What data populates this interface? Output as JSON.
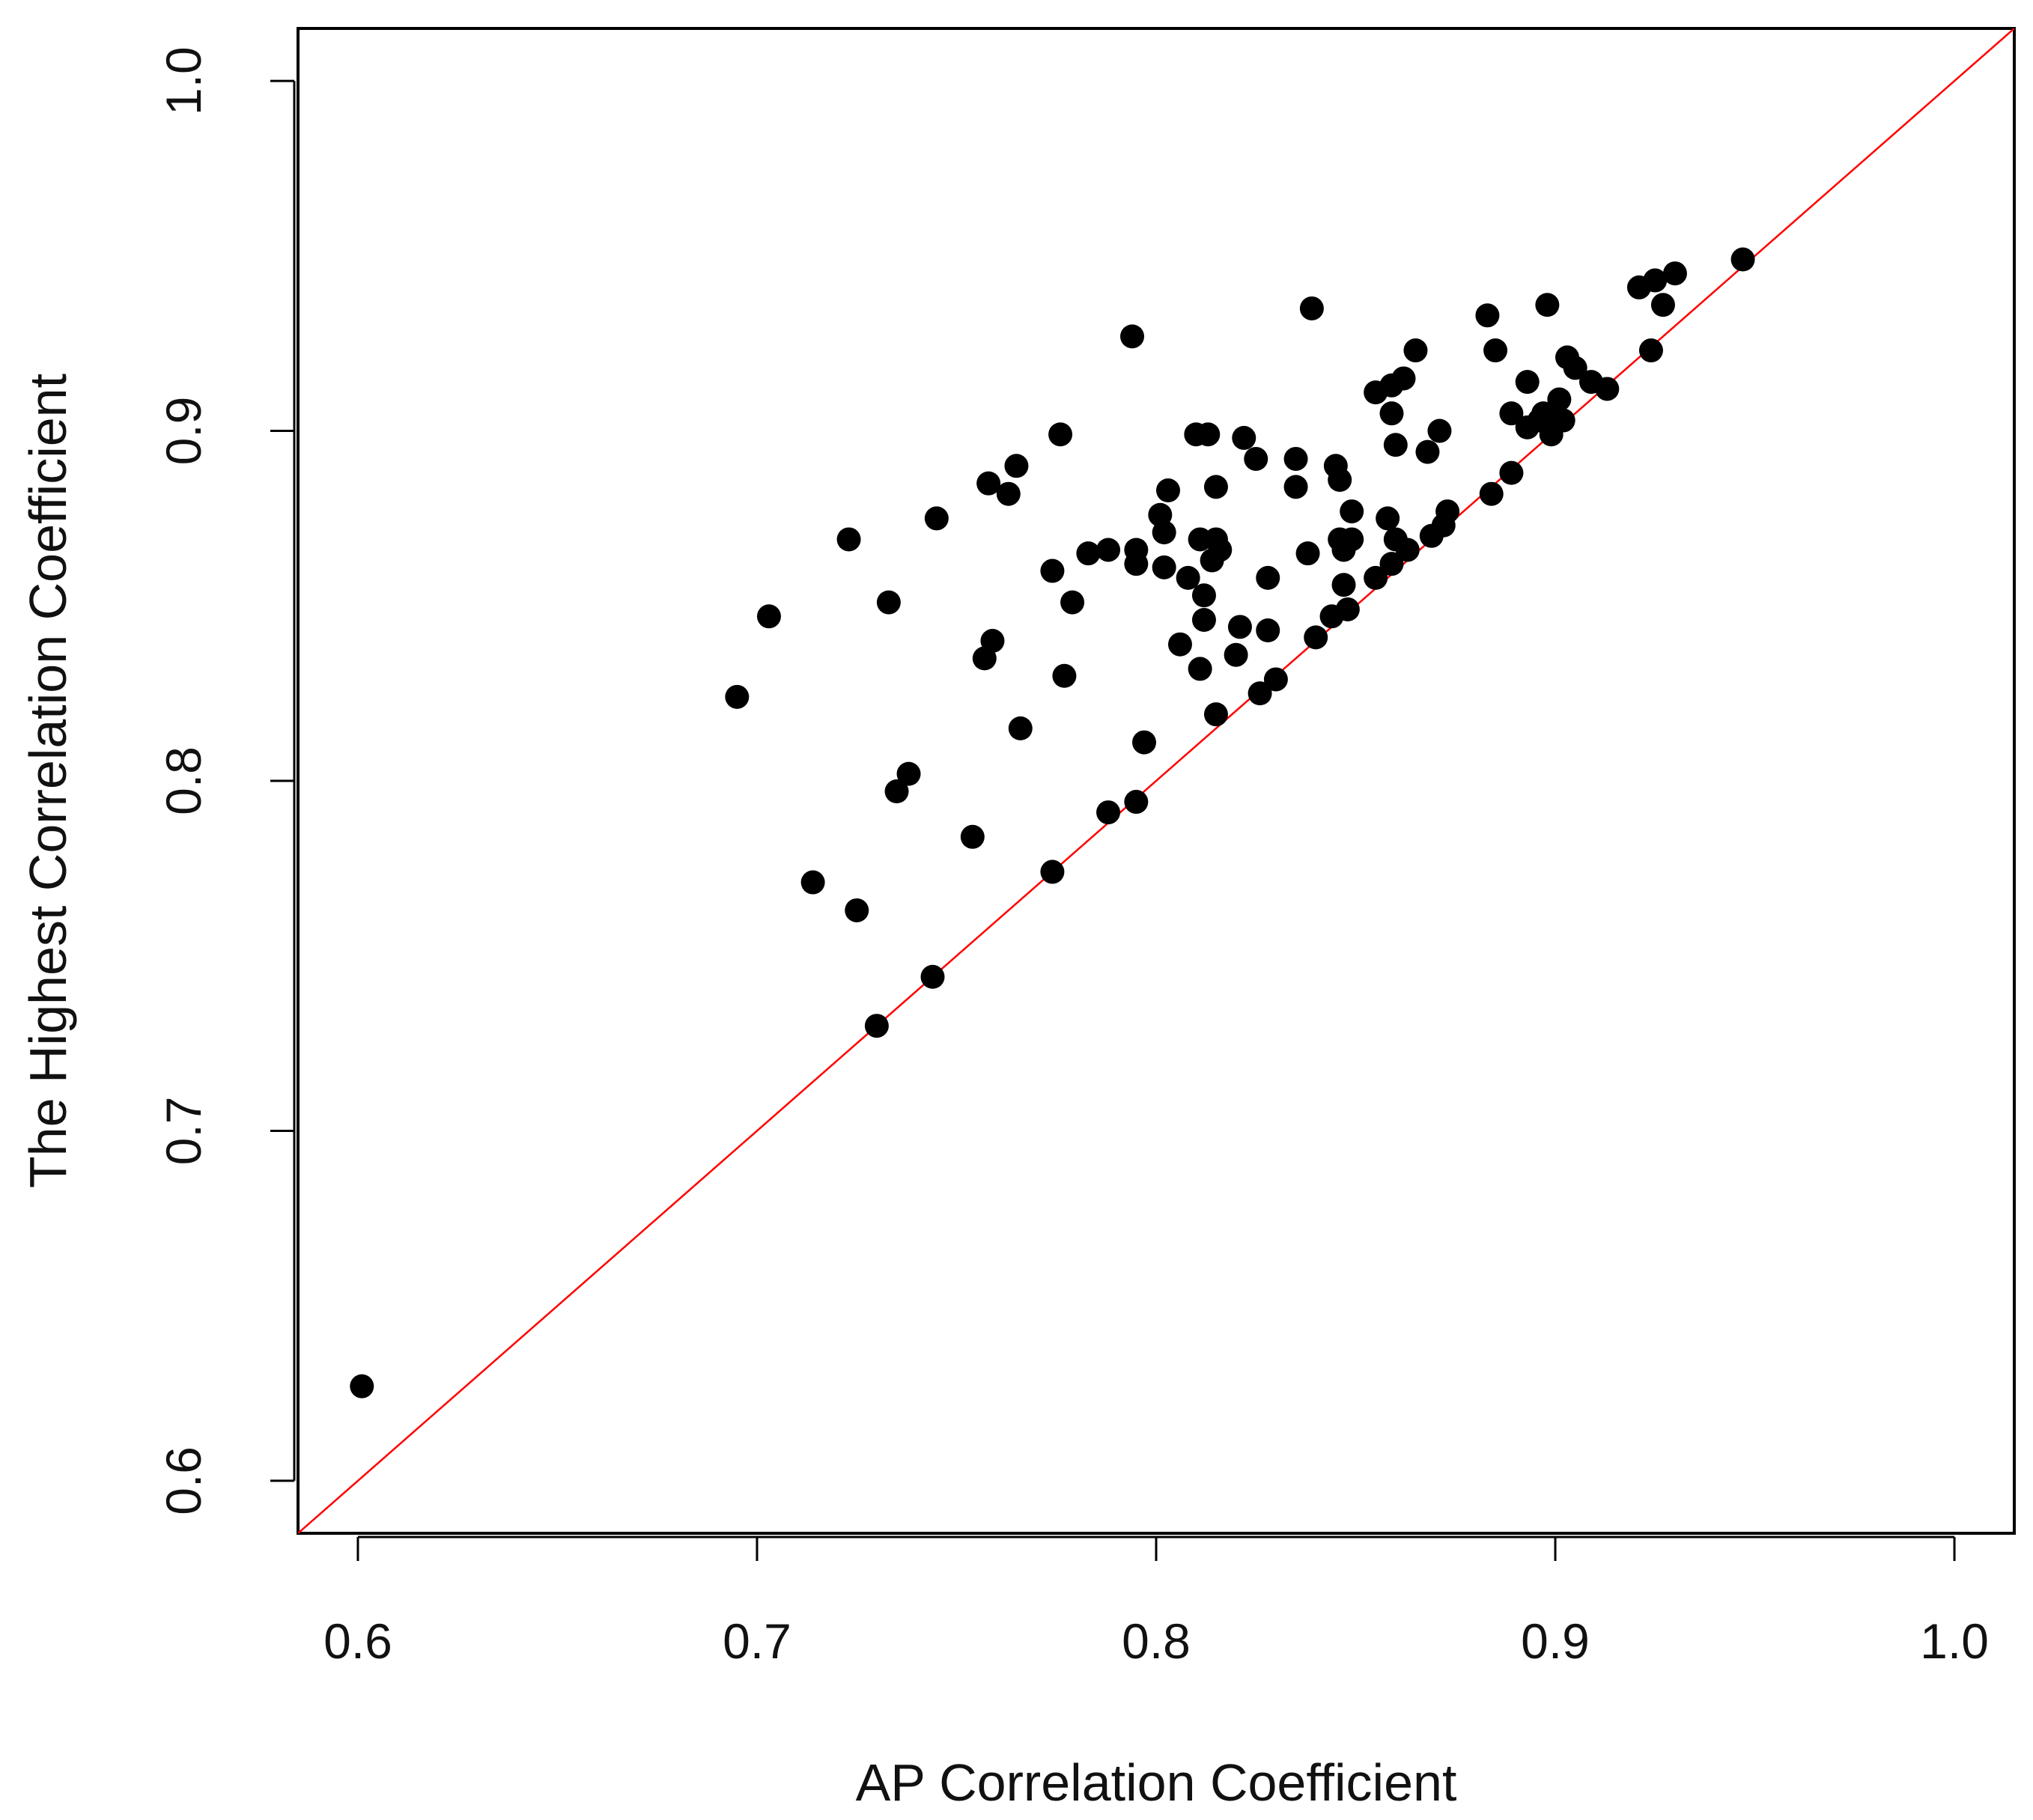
{
  "chart_data": {
    "type": "scatter",
    "xlabel": "AP Correlation Coefficient",
    "ylabel": "The Highest Correlation Coefficient",
    "xlim": [
      0.585,
      1.015
    ],
    "ylim": [
      0.585,
      1.015
    ],
    "x_ticks": [
      "0.6",
      "0.7",
      "0.8",
      "0.9",
      "1.0"
    ],
    "y_ticks": [
      "0.6",
      "0.7",
      "0.8",
      "0.9",
      "1.0"
    ],
    "x_tick_values": [
      0.6,
      0.7,
      0.8,
      0.9,
      1.0
    ],
    "y_tick_values": [
      0.6,
      0.7,
      0.8,
      0.9,
      1.0
    ],
    "grid": false,
    "point_color": "#000000",
    "reference_line": {
      "type": "identity",
      "color": "#ff0000"
    },
    "points": [
      [
        0.601,
        0.627
      ],
      [
        0.695,
        0.824
      ],
      [
        0.703,
        0.847
      ],
      [
        0.714,
        0.771
      ],
      [
        0.723,
        0.869
      ],
      [
        0.725,
        0.763
      ],
      [
        0.73,
        0.73
      ],
      [
        0.733,
        0.851
      ],
      [
        0.735,
        0.797
      ],
      [
        0.738,
        0.802
      ],
      [
        0.744,
        0.744
      ],
      [
        0.745,
        0.875
      ],
      [
        0.754,
        0.784
      ],
      [
        0.757,
        0.835
      ],
      [
        0.759,
        0.84
      ],
      [
        0.758,
        0.885
      ],
      [
        0.763,
        0.882
      ],
      [
        0.765,
        0.89
      ],
      [
        0.766,
        0.815
      ],
      [
        0.774,
        0.86
      ],
      [
        0.774,
        0.774
      ],
      [
        0.776,
        0.899
      ],
      [
        0.777,
        0.83
      ],
      [
        0.779,
        0.851
      ],
      [
        0.783,
        0.865
      ],
      [
        0.788,
        0.791
      ],
      [
        0.788,
        0.866
      ],
      [
        0.794,
        0.927
      ],
      [
        0.795,
        0.866
      ],
      [
        0.795,
        0.862
      ],
      [
        0.795,
        0.794
      ],
      [
        0.797,
        0.811
      ],
      [
        0.801,
        0.876
      ],
      [
        0.802,
        0.871
      ],
      [
        0.803,
        0.883
      ],
      [
        0.802,
        0.861
      ],
      [
        0.806,
        0.839
      ],
      [
        0.808,
        0.858
      ],
      [
        0.81,
        0.899
      ],
      [
        0.811,
        0.832
      ],
      [
        0.811,
        0.869
      ],
      [
        0.812,
        0.853
      ],
      [
        0.812,
        0.846
      ],
      [
        0.813,
        0.899
      ],
      [
        0.814,
        0.863
      ],
      [
        0.815,
        0.819
      ],
      [
        0.815,
        0.884
      ],
      [
        0.815,
        0.869
      ],
      [
        0.816,
        0.866
      ],
      [
        0.82,
        0.836
      ],
      [
        0.821,
        0.844
      ],
      [
        0.822,
        0.898
      ],
      [
        0.825,
        0.892
      ],
      [
        0.826,
        0.825
      ],
      [
        0.828,
        0.858
      ],
      [
        0.828,
        0.843
      ],
      [
        0.83,
        0.829
      ],
      [
        0.835,
        0.892
      ],
      [
        0.835,
        0.884
      ],
      [
        0.838,
        0.865
      ],
      [
        0.839,
        0.935
      ],
      [
        0.84,
        0.841
      ],
      [
        0.844,
        0.847
      ],
      [
        0.845,
        0.89
      ],
      [
        0.846,
        0.886
      ],
      [
        0.846,
        0.869
      ],
      [
        0.847,
        0.856
      ],
      [
        0.847,
        0.866
      ],
      [
        0.848,
        0.849
      ],
      [
        0.849,
        0.877
      ],
      [
        0.849,
        0.869
      ],
      [
        0.855,
        0.911
      ],
      [
        0.855,
        0.858
      ],
      [
        0.858,
        0.875
      ],
      [
        0.859,
        0.913
      ],
      [
        0.859,
        0.905
      ],
      [
        0.859,
        0.862
      ],
      [
        0.86,
        0.896
      ],
      [
        0.86,
        0.869
      ],
      [
        0.862,
        0.915
      ],
      [
        0.863,
        0.866
      ],
      [
        0.865,
        0.923
      ],
      [
        0.868,
        0.894
      ],
      [
        0.869,
        0.87
      ],
      [
        0.871,
        0.9
      ],
      [
        0.872,
        0.873
      ],
      [
        0.873,
        0.877
      ],
      [
        0.883,
        0.933
      ],
      [
        0.884,
        0.882
      ],
      [
        0.885,
        0.923
      ],
      [
        0.889,
        0.905
      ],
      [
        0.889,
        0.888
      ],
      [
        0.893,
        0.914
      ],
      [
        0.893,
        0.901
      ],
      [
        0.896,
        0.903
      ],
      [
        0.897,
        0.905
      ],
      [
        0.898,
        0.936
      ],
      [
        0.899,
        0.899
      ],
      [
        0.9,
        0.905
      ],
      [
        0.901,
        0.909
      ],
      [
        0.902,
        0.903
      ],
      [
        0.903,
        0.921
      ],
      [
        0.905,
        0.918
      ],
      [
        0.909,
        0.914
      ],
      [
        0.913,
        0.912
      ],
      [
        0.921,
        0.941
      ],
      [
        0.924,
        0.923
      ],
      [
        0.925,
        0.943
      ],
      [
        0.927,
        0.936
      ],
      [
        0.93,
        0.945
      ],
      [
        0.947,
        0.949
      ]
    ]
  }
}
